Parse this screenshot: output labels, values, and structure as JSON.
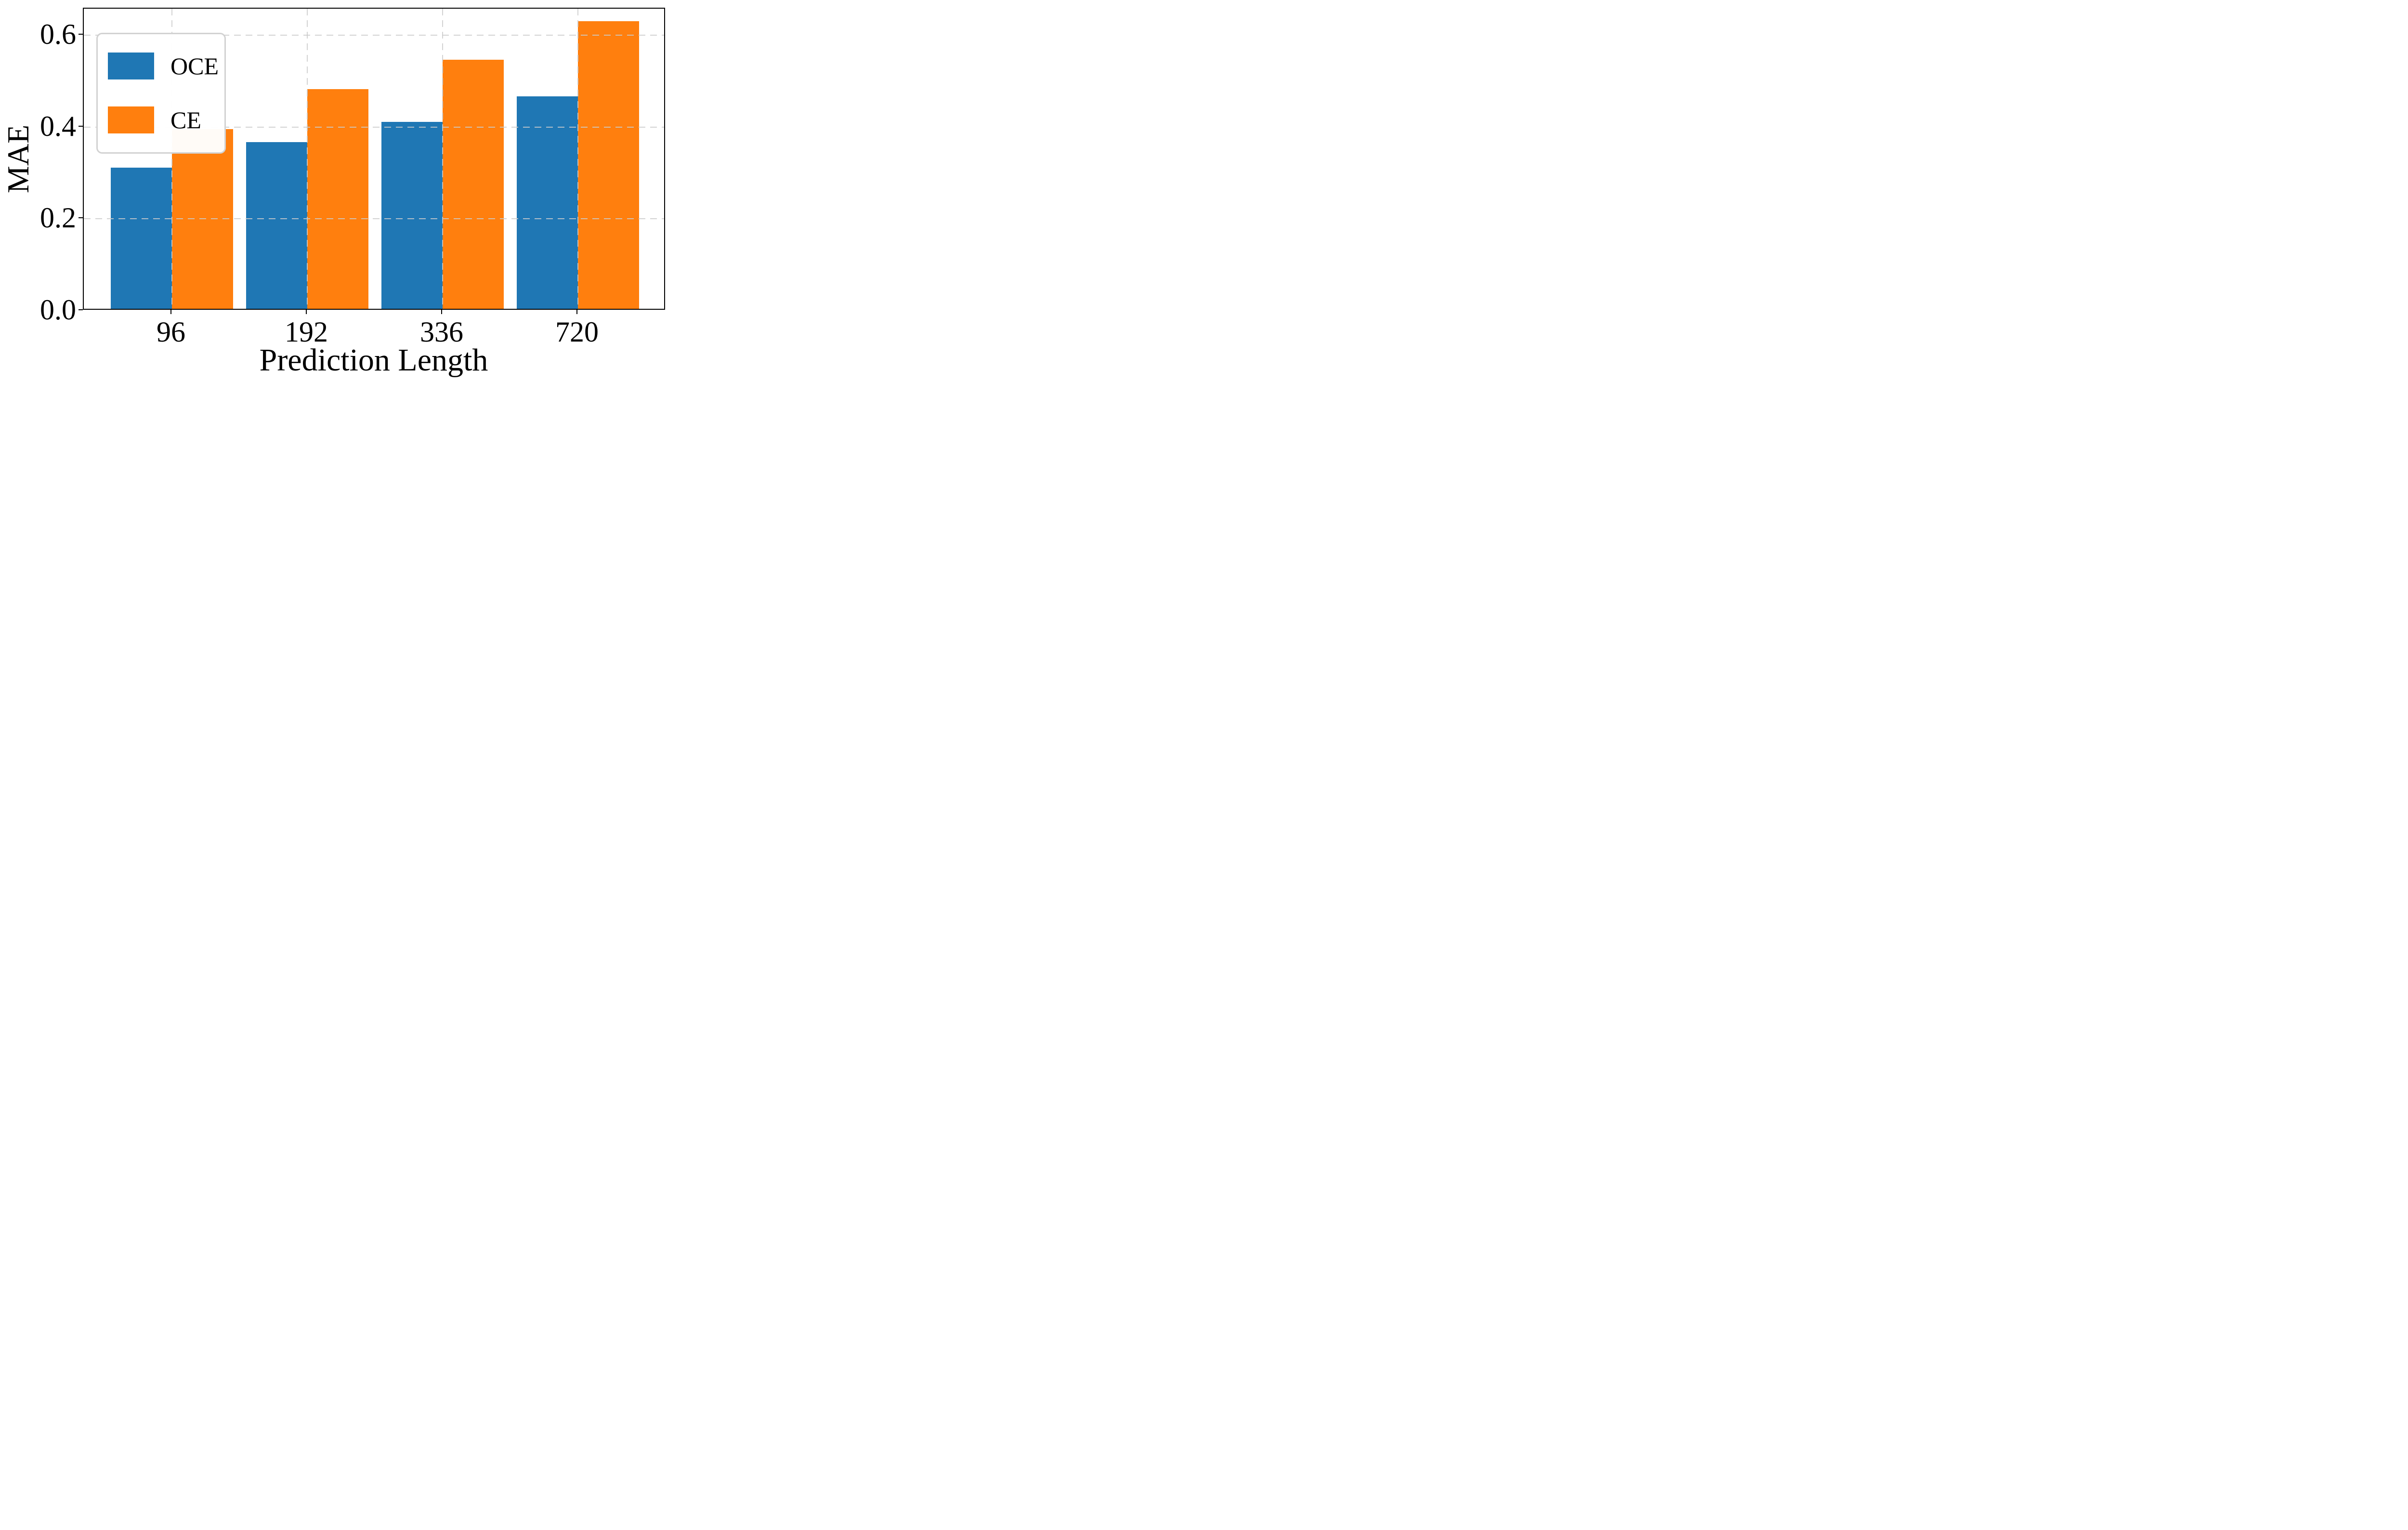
{
  "chart_data": {
    "type": "bar",
    "title": "",
    "xlabel": "Prediction Length",
    "ylabel": "MAE",
    "categories": [
      "96",
      "192",
      "336",
      "720"
    ],
    "series": [
      {
        "name": "OCE",
        "color": "#1f77b4",
        "values": [
          0.308,
          0.363,
          0.407,
          0.463
        ]
      },
      {
        "name": "CE",
        "color": "#ff7f0e",
        "values": [
          0.391,
          0.479,
          0.543,
          0.627
        ]
      }
    ],
    "ylim": [
      0,
      0.658
    ],
    "yticks": [
      0.0,
      0.2,
      0.4,
      0.6
    ],
    "ytick_labels": [
      "0.0",
      "0.2",
      "0.4",
      "0.6"
    ],
    "grid": {
      "horizontal": true,
      "vertical": true,
      "style": "dashed",
      "color": "#cbcbcb",
      "drawn_over_bars": true
    },
    "legend_position": "upper-left",
    "bar_width_fraction": 0.45
  },
  "colors": {
    "oce_blue": "#1f77b4",
    "ce_orange": "#ff7f0e",
    "axis": "#000000",
    "grid": "#cbcbcb",
    "background": "#ffffff",
    "legend_border": "#d2d2d2"
  }
}
